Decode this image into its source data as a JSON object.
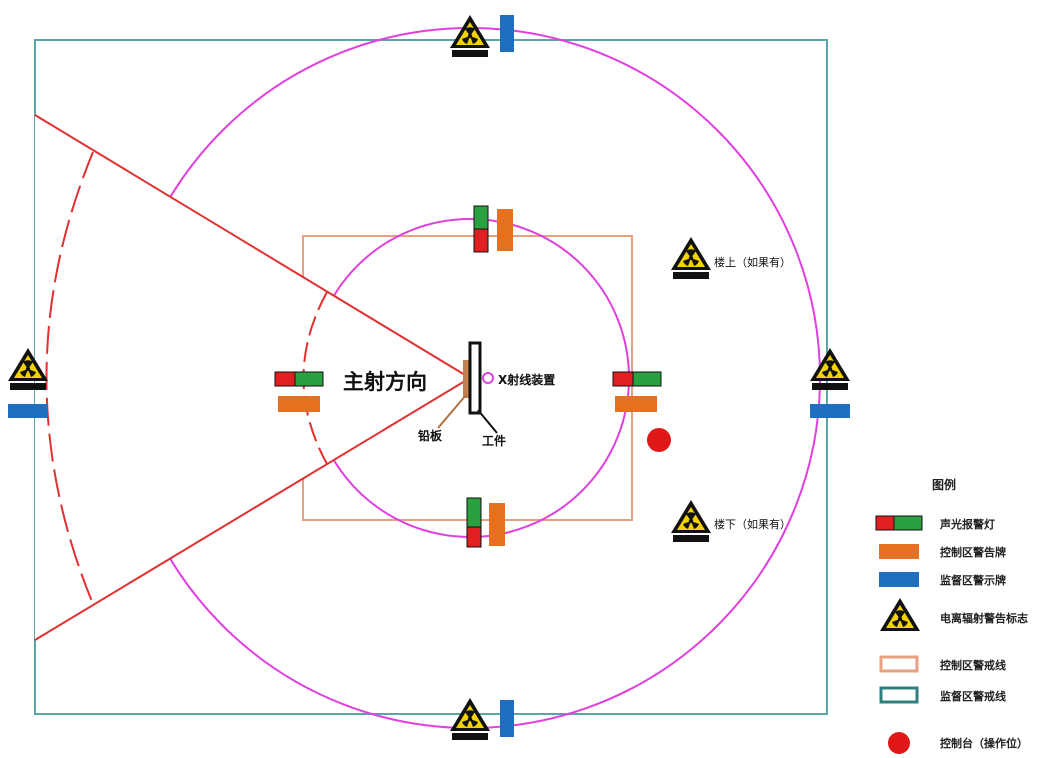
{
  "labels": {
    "main_direction": "主射方向",
    "xray_device": "X射线装置",
    "lead_plate": "铅板",
    "workpiece": "工件",
    "upstairs": "楼上（如果有）",
    "downstairs": "楼下（如果有）"
  },
  "legend": {
    "title": "图例",
    "items": [
      {
        "key": "alarm-light",
        "label": "声光报警灯"
      },
      {
        "key": "control-sign",
        "label": "控制区警告牌"
      },
      {
        "key": "supervision-sign",
        "label": "监督区警示牌"
      },
      {
        "key": "radiation-sign",
        "label": "电离辐射警告标志"
      },
      {
        "key": "control-line",
        "label": "控制区警戒线"
      },
      {
        "key": "supervision-line",
        "label": "监督区警戒线"
      },
      {
        "key": "console",
        "label": "控制台（操作位）"
      }
    ]
  },
  "colors": {
    "supervision_line": "#5aa5a5",
    "control_line": "#e8a080",
    "circle": "#e040e0",
    "beam": "#e03030",
    "alarm_red": "#e02020",
    "alarm_green": "#2aa040",
    "control_sign": "#e57020",
    "supervision_sign": "#1f6fc0",
    "console": "#e01818",
    "warning_yellow": "#f2d200"
  }
}
